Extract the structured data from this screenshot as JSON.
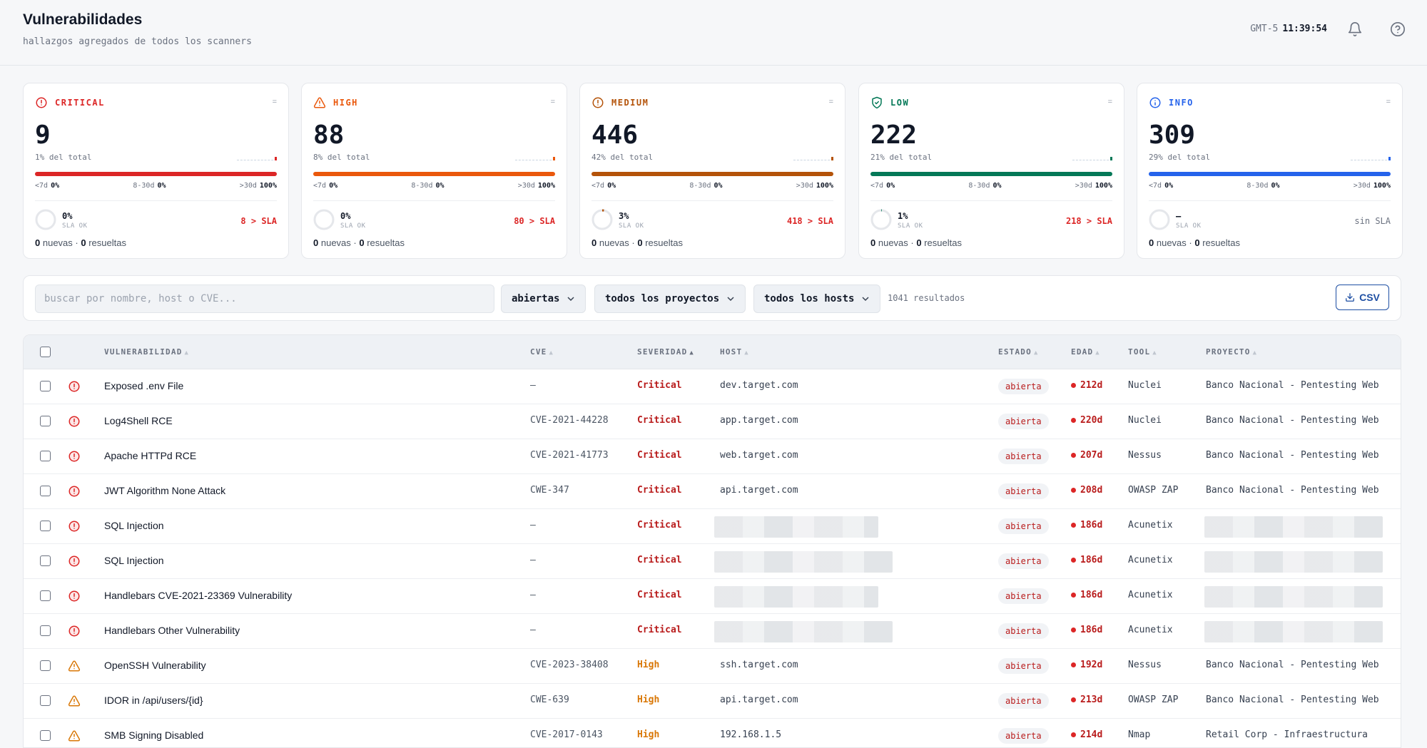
{
  "header": {
    "title": "Vulnerabilidades",
    "subtitle": "hallazgos agregados de todos los scanners",
    "timezone": "GMT-5",
    "time": "11:39:54",
    "icons": [
      "bell-icon",
      "help-icon"
    ]
  },
  "cards": [
    {
      "label": "CRITICAL",
      "color": "#dc2626",
      "icon": "alert-circle-icon",
      "count": "9",
      "pct": "1% del total",
      "age_lt7": "0%",
      "age_8_30": "0%",
      "age_gt30": "100%",
      "sla_pct": "0%",
      "sla_ok": "SLA OK",
      "sla_over": "8 > SLA",
      "sla_fill": 0,
      "nuevas": "0",
      "resueltas": "0",
      "nuevas_label": "nuevas",
      "resueltas_label": "resueltas"
    },
    {
      "label": "HIGH",
      "color": "#ea580c",
      "icon": "alert-triangle-icon",
      "count": "88",
      "pct": "8% del total",
      "age_lt7": "0%",
      "age_8_30": "0%",
      "age_gt30": "100%",
      "sla_pct": "0%",
      "sla_ok": "SLA OK",
      "sla_over": "80 > SLA",
      "sla_fill": 0,
      "nuevas": "0",
      "resueltas": "0",
      "nuevas_label": "nuevas",
      "resueltas_label": "resueltas"
    },
    {
      "label": "MEDIUM",
      "color": "#b45309",
      "icon": "alert-circle-icon",
      "count": "446",
      "pct": "42% del total",
      "age_lt7": "0%",
      "age_8_30": "0%",
      "age_gt30": "100%",
      "sla_pct": "3%",
      "sla_ok": "SLA OK",
      "sla_over": "418 > SLA",
      "sla_fill": 0.03,
      "nuevas": "0",
      "resueltas": "0",
      "nuevas_label": "nuevas",
      "resueltas_label": "resueltas"
    },
    {
      "label": "LOW",
      "color": "#047857",
      "icon": "shield-check-icon",
      "count": "222",
      "pct": "21% del total",
      "age_lt7": "0%",
      "age_8_30": "0%",
      "age_gt30": "100%",
      "sla_pct": "1%",
      "sla_ok": "SLA OK",
      "sla_over": "218 > SLA",
      "sla_fill": 0.01,
      "nuevas": "0",
      "resueltas": "0",
      "nuevas_label": "nuevas",
      "resueltas_label": "resueltas"
    },
    {
      "label": "INFO",
      "color": "#2563eb",
      "icon": "info-icon",
      "count": "309",
      "pct": "29% del total",
      "age_lt7": "0%",
      "age_8_30": "0%",
      "age_gt30": "100%",
      "sla_pct": "—",
      "sla_ok": "SLA OK",
      "sla_over": "sin SLA",
      "sla_fill": 0,
      "nuevas": "0",
      "resueltas": "0",
      "nuevas_label": "nuevas",
      "resueltas_label": "resueltas"
    }
  ],
  "age_labels": {
    "lt7": "<7d",
    "d8_30": "8-30d",
    "gt30": ">30d"
  },
  "filters": {
    "search_placeholder": "buscar por nombre, host o CVE...",
    "estado": "abiertas",
    "proyecto": "todos los proyectos",
    "host": "todos los hosts",
    "results": "1041 resultados",
    "csv_label": "CSV"
  },
  "table": {
    "headers": [
      "VULNERABILIDAD",
      "CVE",
      "SEVERIDAD",
      "HOST",
      "ESTADO",
      "EDAD",
      "TOOL",
      "PROYECTO"
    ],
    "rows": [
      {
        "sev": "Critical",
        "name": "Exposed .env File",
        "cve": "—",
        "host": "dev.target.com",
        "estado": "abierta",
        "edad": "212d",
        "tool": "Nuclei",
        "proyecto": "Banco Nacional - Pentesting Web"
      },
      {
        "sev": "Critical",
        "name": "Log4Shell RCE",
        "cve": "CVE-2021-44228",
        "host": "app.target.com",
        "estado": "abierta",
        "edad": "220d",
        "tool": "Nuclei",
        "proyecto": "Banco Nacional - Pentesting Web"
      },
      {
        "sev": "Critical",
        "name": "Apache HTTPd RCE",
        "cve": "CVE-2021-41773",
        "host": "web.target.com",
        "estado": "abierta",
        "edad": "207d",
        "tool": "Nessus",
        "proyecto": "Banco Nacional - Pentesting Web"
      },
      {
        "sev": "Critical",
        "name": "JWT Algorithm None Attack",
        "cve": "CWE-347",
        "host": "api.target.com",
        "estado": "abierta",
        "edad": "208d",
        "tool": "OWASP ZAP",
        "proyecto": "Banco Nacional - Pentesting Web"
      },
      {
        "sev": "Critical",
        "name": "SQL Injection",
        "cve": "—",
        "host": "",
        "redacted": true,
        "estado": "abierta",
        "edad": "186d",
        "tool": "Acunetix",
        "proyecto": ""
      },
      {
        "sev": "Critical",
        "name": "SQL Injection",
        "cve": "—",
        "host": "",
        "redacted": true,
        "estado": "abierta",
        "edad": "186d",
        "tool": "Acunetix",
        "proyecto": ""
      },
      {
        "sev": "Critical",
        "name": "Handlebars CVE-2021-23369 Vulnerability",
        "cve": "—",
        "host": "",
        "redacted": true,
        "estado": "abierta",
        "edad": "186d",
        "tool": "Acunetix",
        "proyecto": ""
      },
      {
        "sev": "Critical",
        "name": "Handlebars Other Vulnerability",
        "cve": "—",
        "host": "",
        "redacted": true,
        "estado": "abierta",
        "edad": "186d",
        "tool": "Acunetix",
        "proyecto": ""
      },
      {
        "sev": "High",
        "name": "OpenSSH Vulnerability",
        "cve": "CVE-2023-38408",
        "host": "ssh.target.com",
        "estado": "abierta",
        "edad": "192d",
        "tool": "Nessus",
        "proyecto": "Banco Nacional - Pentesting Web"
      },
      {
        "sev": "High",
        "name": "IDOR in /api/users/{id}",
        "cve": "CWE-639",
        "host": "api.target.com",
        "estado": "abierta",
        "edad": "213d",
        "tool": "OWASP ZAP",
        "proyecto": "Banco Nacional - Pentesting Web"
      },
      {
        "sev": "High",
        "name": "SMB Signing Disabled",
        "cve": "CVE-2017-0143",
        "host": "192.168.1.5",
        "estado": "abierta",
        "edad": "214d",
        "tool": "Nmap",
        "proyecto": "Retail Corp - Infraestructura"
      }
    ]
  }
}
